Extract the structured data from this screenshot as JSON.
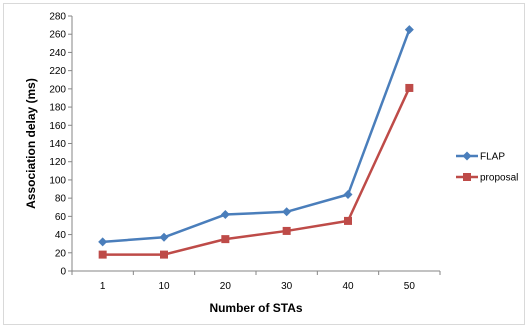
{
  "chart_data": {
    "type": "line",
    "title": "",
    "xlabel": "Number of STAs",
    "ylabel": "Association delay (ms)",
    "categories": [
      "1",
      "10",
      "20",
      "30",
      "40",
      "50"
    ],
    "ylim": [
      0,
      280
    ],
    "yticks": [
      0,
      20,
      40,
      60,
      80,
      100,
      120,
      140,
      160,
      180,
      200,
      220,
      240,
      260,
      280
    ],
    "grid": false,
    "legend_position": "right",
    "series": [
      {
        "name": "FLAP",
        "values": [
          32,
          37,
          62,
          65,
          84,
          265
        ],
        "color": "#4a7ebb",
        "marker": "diamond"
      },
      {
        "name": "proposal",
        "values": [
          18,
          18,
          35,
          44,
          55,
          201
        ],
        "color": "#be4b48",
        "marker": "square"
      }
    ]
  }
}
